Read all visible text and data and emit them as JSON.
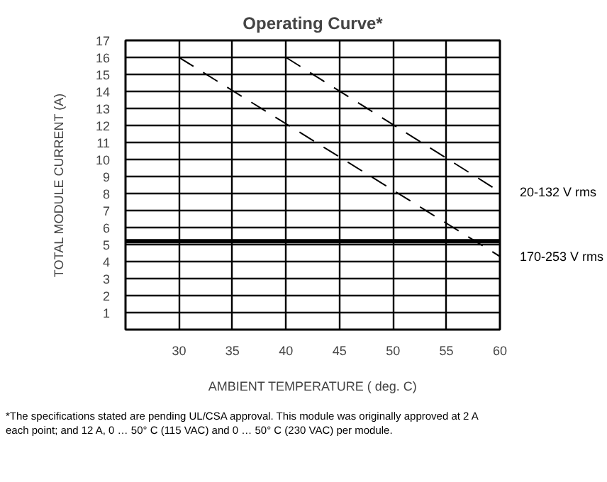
{
  "chart_data": {
    "type": "line",
    "title": "Operating Curve*",
    "xlabel": "AMBIENT TEMPERATURE ( deg. C)",
    "ylabel": "TOTAL MODULE CURRENT (A)",
    "xlim": [
      25,
      60
    ],
    "ylim": [
      0,
      17
    ],
    "xticks": [
      30,
      35,
      40,
      45,
      50,
      55,
      60
    ],
    "yticks": [
      1,
      2,
      3,
      4,
      5,
      6,
      7,
      8,
      9,
      10,
      11,
      12,
      13,
      14,
      15,
      16,
      17
    ],
    "grid": true,
    "line_style": "dashed",
    "series": [
      {
        "name": "20-132 V rms",
        "color": "#000000",
        "x": [
          40,
          60
        ],
        "values": [
          16,
          8.1
        ]
      },
      {
        "name": "170-253 V rms",
        "color": "#000000",
        "x": [
          30,
          60
        ],
        "values": [
          16,
          4.3
        ]
      }
    ],
    "ref_lines": [
      {
        "axis": "y",
        "value": 5.2,
        "color": "#000000"
      }
    ],
    "annotations": [
      "*The specifications stated are pending UL/CSA approval. This module was originally approved at 2 A",
      "each point; and 12 A, 0 … 50° C (115 VAC) and 0 … 50° C (230 VAC) per module."
    ]
  }
}
